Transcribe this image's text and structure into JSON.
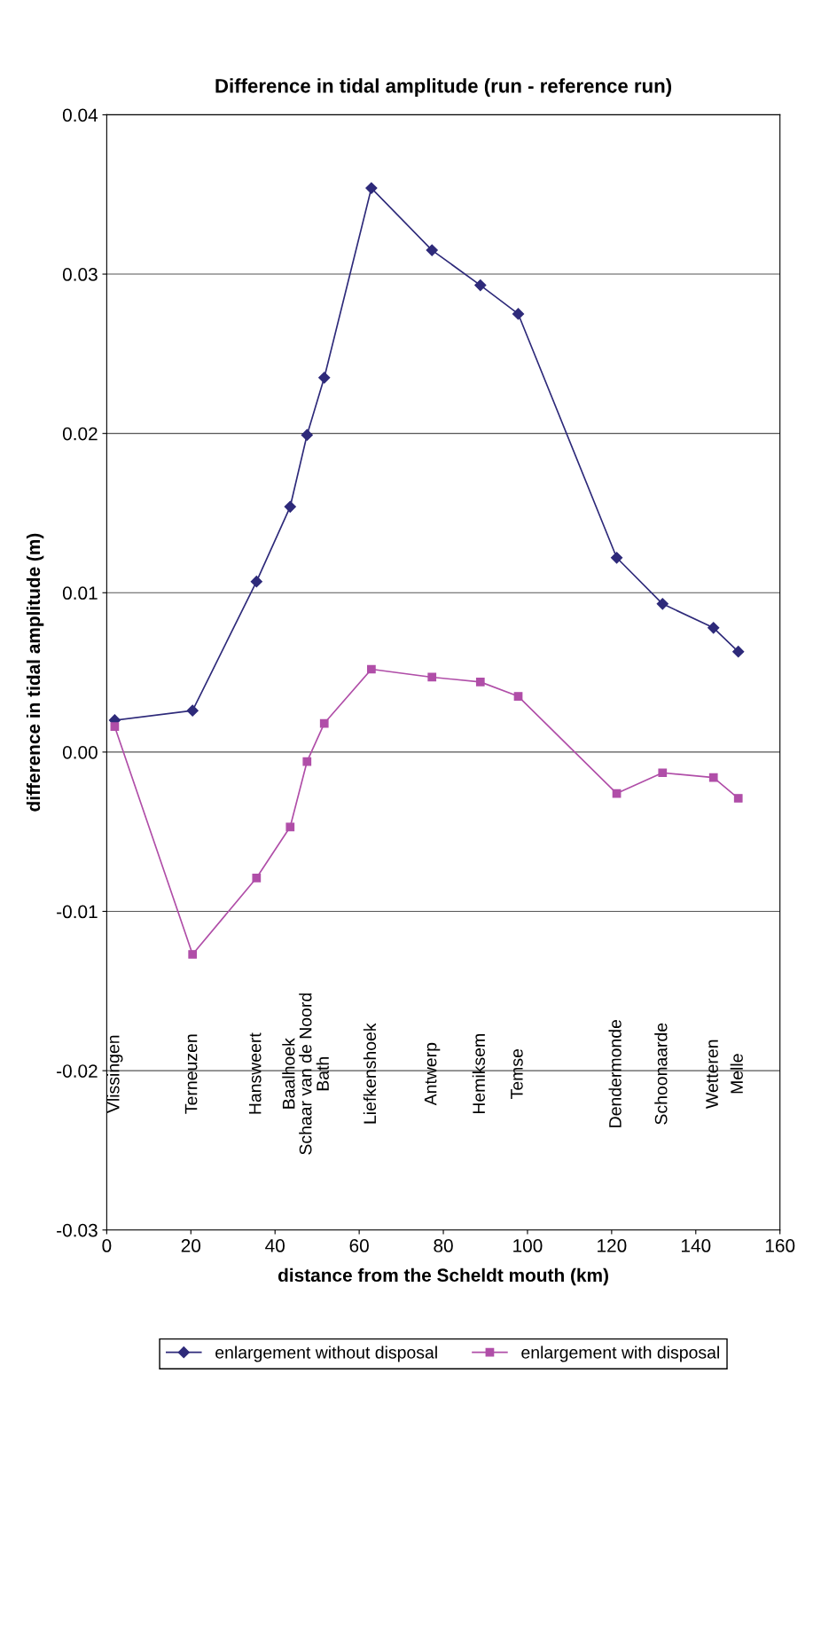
{
  "chart_data": {
    "type": "line",
    "title": "Difference in tidal amplitude (run - reference run)",
    "xlabel": "distance from the Scheldt mouth (km)",
    "ylabel": "difference in tidal amplitude (m)",
    "x": [
      1.9,
      20.4,
      35.6,
      43.6,
      47.6,
      51.7,
      62.9,
      77.3,
      88.8,
      97.8,
      121.2,
      132.1,
      144.2,
      150.1
    ],
    "series": [
      {
        "name": "enlargement without disposal",
        "color": "#2e2a7a",
        "marker": "diamond",
        "values": [
          0.002,
          0.0026,
          0.0107,
          0.0154,
          0.0199,
          0.0235,
          0.0354,
          0.0315,
          0.0293,
          0.0275,
          0.0122,
          0.0093,
          0.0078,
          0.0063
        ]
      },
      {
        "name": "enlargement with disposal",
        "color": "#b04ea8",
        "marker": "square",
        "values": [
          0.0016,
          -0.0127,
          -0.0079,
          -0.0047,
          -0.0006,
          0.0018,
          0.0052,
          0.0047,
          0.0044,
          0.0035,
          -0.0026,
          -0.0013,
          -0.0016,
          -0.0029
        ]
      }
    ],
    "xlim": [
      0,
      160
    ],
    "xticks": [
      0,
      20,
      40,
      60,
      80,
      100,
      120,
      140,
      160
    ],
    "ylim": [
      -0.03,
      0.04
    ],
    "yticks": [
      {
        "value": -0.03,
        "label": "-0.03"
      },
      {
        "value": -0.02,
        "label": "-0.02"
      },
      {
        "value": -0.01,
        "label": "-0.01"
      },
      {
        "value": 0,
        "label": "0.00"
      },
      {
        "value": 0.01,
        "label": "0.01"
      },
      {
        "value": 0.02,
        "label": "0.02"
      },
      {
        "value": 0.03,
        "label": "0.03"
      },
      {
        "value": 0.04,
        "label": "0.04"
      }
    ],
    "grid": "y",
    "legend": "bottom",
    "line_style": "solid",
    "annotations": [
      "Vlissingen",
      "Terneuzen",
      "Hansweert",
      "Baalhoek",
      "Schaar van de Noord",
      "Bath",
      "Liefkenshoek",
      "Antwerp",
      "Hemiksem",
      "Temse",
      "Dendermonde",
      "Schoonaarde",
      "Wetteren",
      "Melle"
    ]
  }
}
